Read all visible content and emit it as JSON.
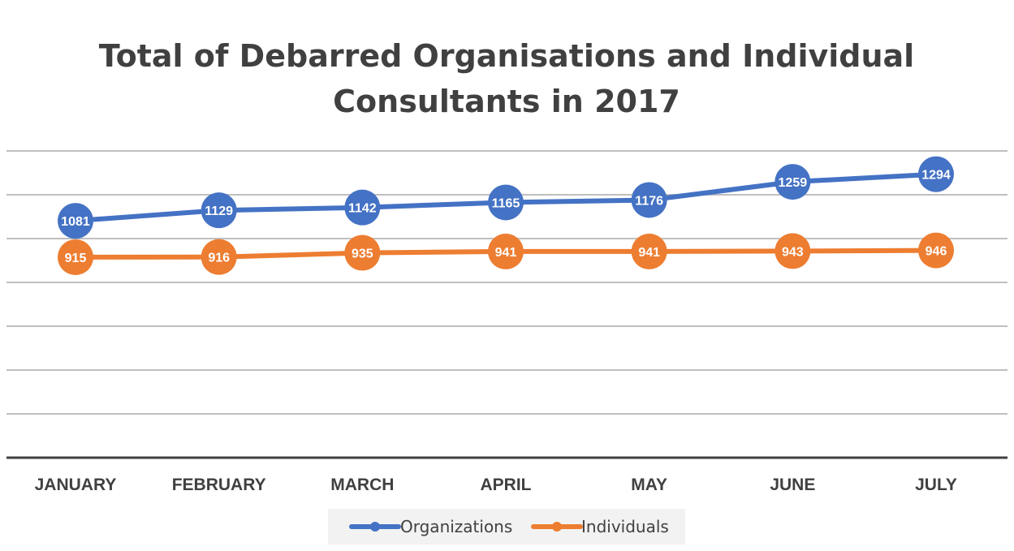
{
  "chart_data": {
    "type": "line",
    "title_lines": [
      "Total of Debarred Organisations and Individual",
      "Consultants in 2017"
    ],
    "categories": [
      "JANUARY",
      "FEBRUARY",
      "MARCH",
      "APRIL",
      "MAY",
      "JUNE",
      "JULY"
    ],
    "series": [
      {
        "name": "Organizations",
        "color": "#4472C4",
        "values": [
          1081,
          1129,
          1142,
          1165,
          1176,
          1259,
          1294
        ]
      },
      {
        "name": "Individuals",
        "color": "#ED7D31",
        "values": [
          915,
          916,
          935,
          941,
          941,
          943,
          946
        ]
      }
    ],
    "ylim": [
      0,
      1400
    ],
    "y_gridline_step": 200,
    "y_tick_labels_shown": false,
    "grid": true,
    "data_labels": true,
    "legend": "bottom",
    "xlabel": "",
    "ylabel": ""
  }
}
